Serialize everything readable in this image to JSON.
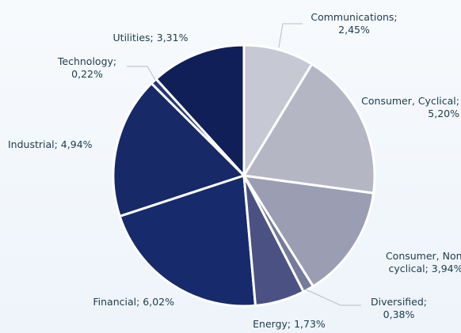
{
  "chart_data": {
    "type": "pie",
    "values": [
      2.45,
      5.2,
      3.94,
      0.38,
      1.73,
      6.02,
      4.94,
      0.22,
      3.31
    ],
    "value_labels": [
      "Communications; 2,45%",
      "Consumer, Cyclical; 5,20%",
      "Consumer, Non-cyclical; 3,94%",
      "Diversified; 0,38%",
      "Energy; 1,73%",
      "Financial; 6,02%",
      "Industrial; 4,94%",
      "Technology; 0,22%",
      "Utilities; 3,31%"
    ],
    "colors": [
      "#c6c8d4",
      "#b4b6c4",
      "#9b9db3",
      "#767a9a",
      "#4b5283",
      "#172a6c",
      "#172967",
      "#253678",
      "#101f58"
    ]
  }
}
